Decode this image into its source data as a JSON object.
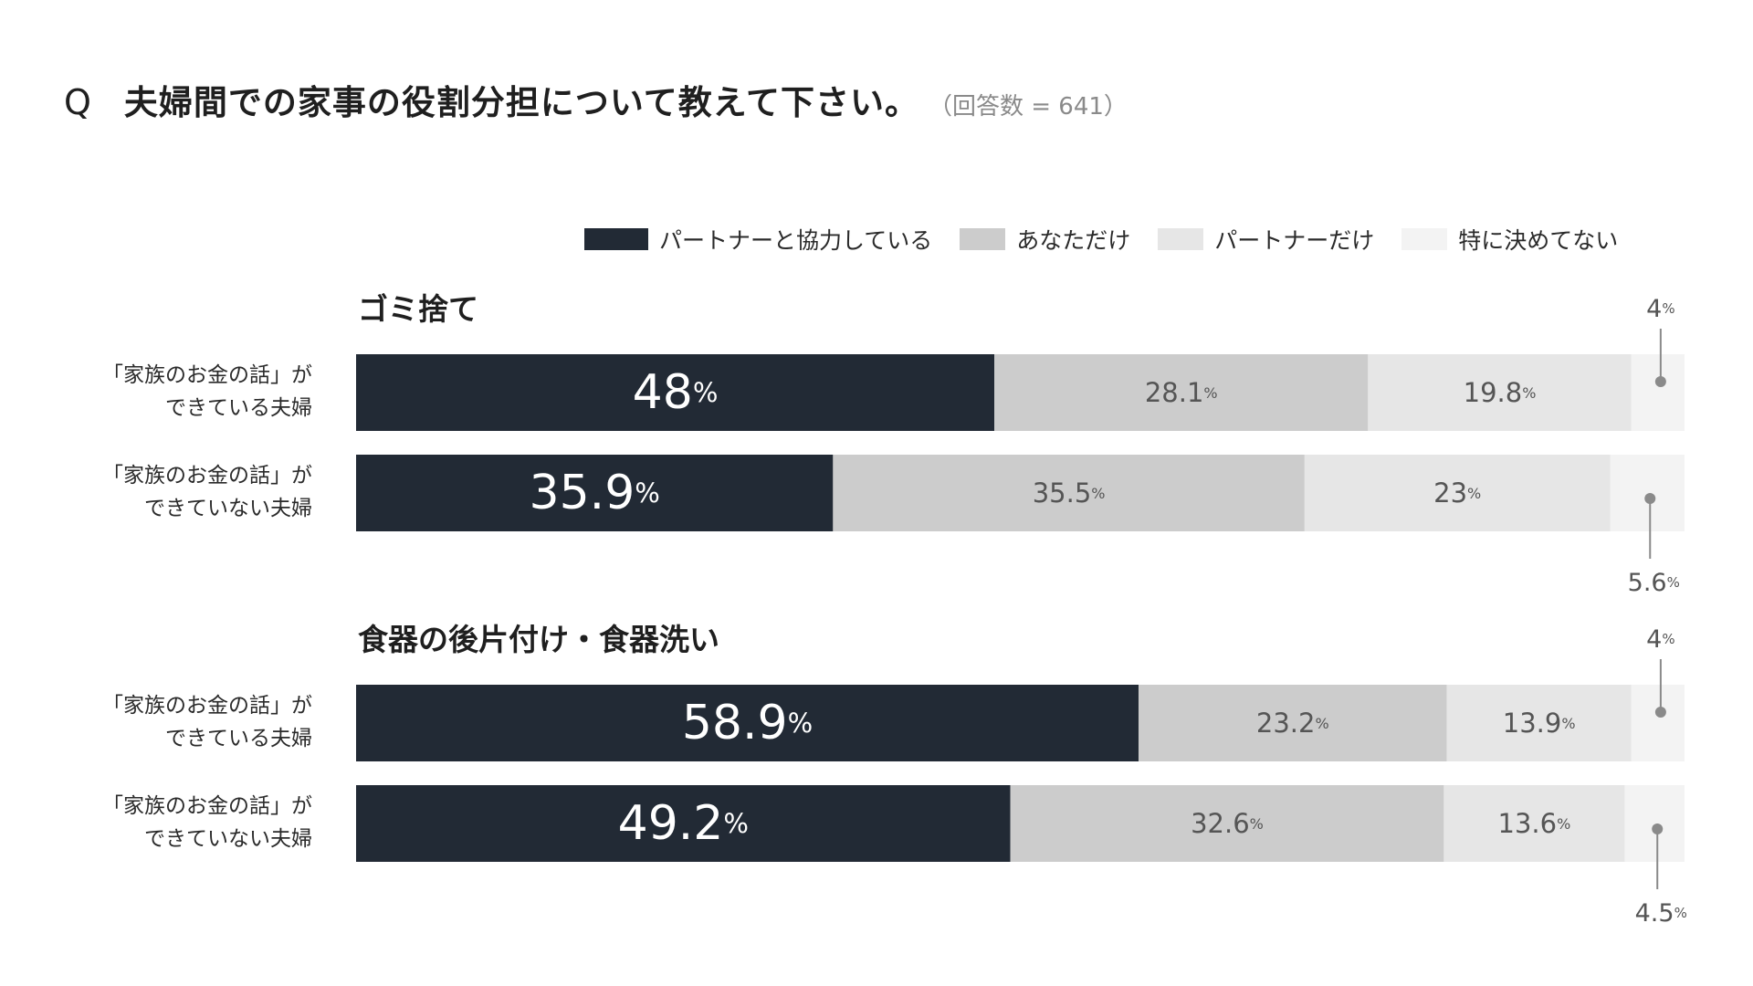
{
  "question": {
    "letter": "Q",
    "title": "夫婦間での家事の役割分担について教えて下さい。",
    "note": "（回答数 = 641）"
  },
  "colors": {
    "partner_together": "#222a35",
    "you_only": "#cccccc",
    "partner_only": "#e6e6e6",
    "not_decided": "#f3f3f3",
    "leader": "#8a8a8a"
  },
  "legend": [
    {
      "label": "パートナーと協力している",
      "color_key": "partner_together"
    },
    {
      "label": "あなただけ",
      "color_key": "you_only"
    },
    {
      "label": "パートナーだけ",
      "color_key": "partner_only"
    },
    {
      "label": "特に決めてない",
      "color_key": "not_decided"
    }
  ],
  "chart_data": {
    "type": "bar",
    "orientation": "horizontal-stacked-100",
    "unit": "%",
    "series": [
      {
        "name": "パートナーと協力している"
      },
      {
        "name": "あなただけ"
      },
      {
        "name": "パートナーだけ"
      },
      {
        "name": "特に決めてない"
      }
    ],
    "groups": [
      {
        "title": "ゴミ捨て",
        "rows": [
          {
            "label": [
              "「家族のお金の話」が",
              "できている夫婦"
            ],
            "values": [
              48,
              28.1,
              19.8,
              4
            ],
            "display": [
              "48",
              "28.1",
              "19.8",
              "4"
            ]
          },
          {
            "label": [
              "「家族のお金の話」が",
              "できていない夫婦"
            ],
            "values": [
              35.9,
              35.5,
              23,
              5.6
            ],
            "display": [
              "35.9",
              "35.5",
              "23",
              "5.6"
            ]
          }
        ]
      },
      {
        "title": "食器の後片付け・食器洗い",
        "rows": [
          {
            "label": [
              "「家族のお金の話」が",
              "できている夫婦"
            ],
            "values": [
              58.9,
              23.2,
              13.9,
              4
            ],
            "display": [
              "58.9",
              "23.2",
              "13.9",
              "4"
            ]
          },
          {
            "label": [
              "「家族のお金の話」が",
              "できていない夫婦"
            ],
            "values": [
              49.2,
              32.6,
              13.6,
              4.5
            ],
            "display": [
              "49.2",
              "32.6",
              "13.6",
              "4.5"
            ]
          }
        ]
      }
    ]
  }
}
